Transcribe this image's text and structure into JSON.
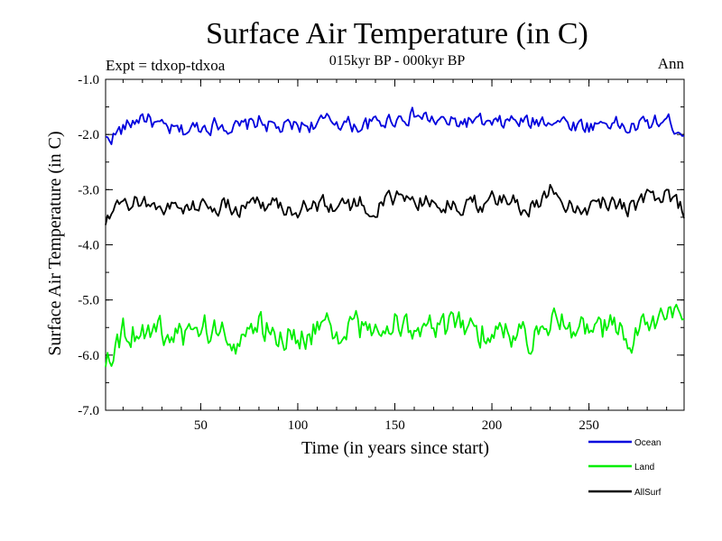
{
  "chart_data": {
    "type": "line",
    "title": "Surface Air Temperature (in C)",
    "subtitle": "015kyr BP - 000kyr BP",
    "experiment": "Expt = tdxop-tdxoa",
    "period": "Ann",
    "xlabel": "Time (in years since start)",
    "ylabel": "Surface Air Temperature (in C)",
    "xlim": [
      1,
      299
    ],
    "ylim": [
      -7.0,
      -1.0
    ],
    "x_ticks": [
      50,
      100,
      150,
      200,
      250
    ],
    "y_ticks": [
      -1.0,
      -2.0,
      -3.0,
      -4.0,
      -5.0,
      -6.0,
      -7.0
    ],
    "y_tick_labels": [
      "-1.0",
      "-2.0",
      "-3.0",
      "-4.0",
      "-5.0",
      "-6.0",
      "-7.0"
    ],
    "grid": false,
    "legend_position": "below-right",
    "series": [
      {
        "name": "Ocean",
        "color": "#0000dd",
        "x": [
          1,
          10,
          20,
          30,
          40,
          50,
          60,
          70,
          80,
          90,
          100,
          110,
          120,
          130,
          140,
          150,
          160,
          170,
          180,
          190,
          200,
          210,
          220,
          230,
          240,
          250,
          260,
          270,
          280,
          290,
          299
        ],
        "y": [
          -2.1,
          -1.9,
          -1.65,
          -1.9,
          -1.95,
          -1.85,
          -1.8,
          -1.9,
          -1.75,
          -1.9,
          -1.85,
          -1.8,
          -1.75,
          -1.85,
          -1.8,
          -1.7,
          -1.65,
          -1.75,
          -1.8,
          -1.75,
          -1.85,
          -1.75,
          -1.8,
          -1.7,
          -1.8,
          -1.85,
          -1.75,
          -1.9,
          -1.8,
          -1.75,
          -1.95
        ]
      },
      {
        "name": "Land",
        "color": "#00ee00",
        "x": [
          1,
          10,
          20,
          30,
          40,
          50,
          60,
          70,
          80,
          90,
          100,
          110,
          120,
          130,
          140,
          150,
          160,
          170,
          180,
          190,
          200,
          210,
          220,
          230,
          240,
          250,
          260,
          270,
          280,
          290,
          299
        ],
        "y": [
          -6.0,
          -5.6,
          -5.5,
          -5.6,
          -5.7,
          -5.5,
          -5.6,
          -5.7,
          -5.5,
          -5.6,
          -5.7,
          -5.5,
          -5.6,
          -5.5,
          -5.6,
          -5.4,
          -5.5,
          -5.6,
          -5.5,
          -5.6,
          -5.5,
          -5.6,
          -5.7,
          -5.3,
          -5.5,
          -5.6,
          -5.5,
          -5.7,
          -5.5,
          -5.2,
          -5.5
        ]
      },
      {
        "name": "AllSurf",
        "color": "#000000",
        "x": [
          1,
          10,
          20,
          30,
          40,
          50,
          60,
          70,
          80,
          90,
          100,
          110,
          120,
          130,
          140,
          150,
          160,
          170,
          180,
          190,
          200,
          210,
          220,
          230,
          240,
          250,
          260,
          270,
          280,
          290,
          299
        ],
        "y": [
          -3.6,
          -3.3,
          -3.2,
          -3.3,
          -3.35,
          -3.25,
          -3.3,
          -3.35,
          -3.2,
          -3.3,
          -3.35,
          -3.25,
          -3.3,
          -3.25,
          -3.3,
          -3.2,
          -3.15,
          -3.25,
          -3.3,
          -3.25,
          -3.2,
          -3.25,
          -3.3,
          -3.0,
          -3.25,
          -3.3,
          -3.2,
          -3.3,
          -3.2,
          -3.05,
          -3.35
        ]
      }
    ]
  }
}
